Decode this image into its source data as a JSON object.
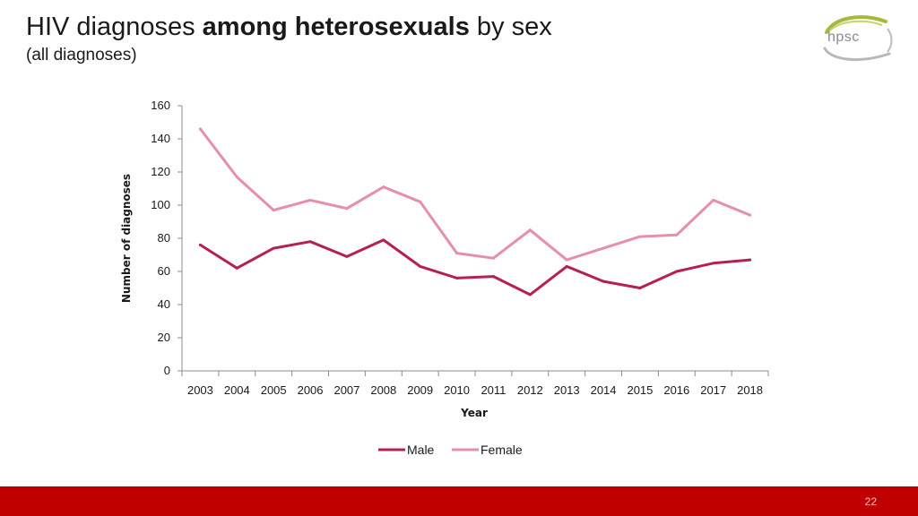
{
  "slide": {
    "title_pre": "HIV diagnoses ",
    "title_bold": "among heterosexuals",
    "title_post": " by sex",
    "subtitle": "(all diagnoses)",
    "logo_text": "hpsc",
    "page_number": "22",
    "footer_color": "#c00000"
  },
  "chart_data": {
    "type": "line",
    "title": "",
    "xlabel": "Year",
    "ylabel": "Number of diagnoses",
    "categories": [
      "2003",
      "2004",
      "2005",
      "2006",
      "2007",
      "2008",
      "2009",
      "2010",
      "2011",
      "2012",
      "2013",
      "2014",
      "2015",
      "2016",
      "2017",
      "2018"
    ],
    "ylim": [
      0,
      160
    ],
    "yticks": [
      0,
      20,
      40,
      60,
      80,
      100,
      120,
      140,
      160
    ],
    "grid": false,
    "legend_position": "bottom",
    "series": [
      {
        "name": "Male",
        "color": "#b5214f",
        "values": [
          76,
          62,
          74,
          78,
          69,
          79,
          63,
          56,
          57,
          46,
          63,
          54,
          50,
          60,
          65,
          67
        ]
      },
      {
        "name": "Female",
        "color": "#e68fa8",
        "values": [
          146,
          117,
          97,
          103,
          98,
          111,
          102,
          71,
          68,
          85,
          67,
          74,
          81,
          82,
          103,
          94
        ]
      }
    ]
  }
}
